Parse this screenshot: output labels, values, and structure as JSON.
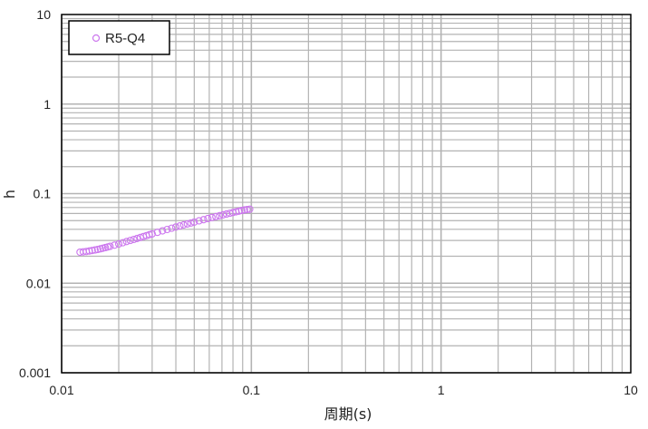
{
  "chart_data": {
    "type": "scatter",
    "title": "",
    "xlabel": "周期(s)",
    "ylabel": "h",
    "xscale": "log",
    "yscale": "log",
    "xlim": [
      0.01,
      10
    ],
    "ylim": [
      0.001,
      10
    ],
    "x_ticks": [
      {
        "value": 0.01,
        "label": "0.01"
      },
      {
        "value": 0.1,
        "label": "0.1"
      },
      {
        "value": 1,
        "label": "1"
      },
      {
        "value": 10,
        "label": "10"
      }
    ],
    "y_ticks": [
      {
        "value": 0.001,
        "label": "0.001"
      },
      {
        "value": 0.01,
        "label": "0.01"
      },
      {
        "value": 0.1,
        "label": "0.1"
      },
      {
        "value": 1,
        "label": "1"
      },
      {
        "value": 10,
        "label": "10"
      }
    ],
    "grid": "major and minor",
    "legend": {
      "position": "top-left",
      "entries": [
        "R5-Q4"
      ]
    },
    "colors": {
      "series": "#cc77ee",
      "grid": "#b3b3b3",
      "frame": "#000000"
    },
    "series": [
      {
        "name": "R5-Q4",
        "marker": "open-circle",
        "x": [
          0.0125,
          0.013,
          0.0135,
          0.014,
          0.0145,
          0.015,
          0.0155,
          0.016,
          0.0165,
          0.017,
          0.0175,
          0.018,
          0.019,
          0.02,
          0.021,
          0.022,
          0.023,
          0.024,
          0.025,
          0.026,
          0.027,
          0.028,
          0.029,
          0.03,
          0.032,
          0.034,
          0.036,
          0.038,
          0.04,
          0.042,
          0.044,
          0.046,
          0.048,
          0.05,
          0.053,
          0.056,
          0.059,
          0.062,
          0.065,
          0.068,
          0.071,
          0.074,
          0.077,
          0.08,
          0.083,
          0.086,
          0.089,
          0.092,
          0.095,
          0.098
        ],
        "y": [
          0.0222,
          0.0224,
          0.0226,
          0.0229,
          0.0232,
          0.0235,
          0.0238,
          0.0242,
          0.0246,
          0.025,
          0.0254,
          0.0258,
          0.0266,
          0.0274,
          0.0283,
          0.0292,
          0.03,
          0.0308,
          0.0316,
          0.0324,
          0.0332,
          0.034,
          0.0348,
          0.0355,
          0.037,
          0.0384,
          0.0398,
          0.0411,
          0.0424,
          0.0436,
          0.0448,
          0.0459,
          0.047,
          0.0481,
          0.0497,
          0.0512,
          0.0527,
          0.0541,
          0.0554,
          0.0567,
          0.058,
          0.0592,
          0.0604,
          0.0616,
          0.0627,
          0.0638,
          0.0648,
          0.0658,
          0.0665,
          0.067
        ]
      }
    ]
  }
}
